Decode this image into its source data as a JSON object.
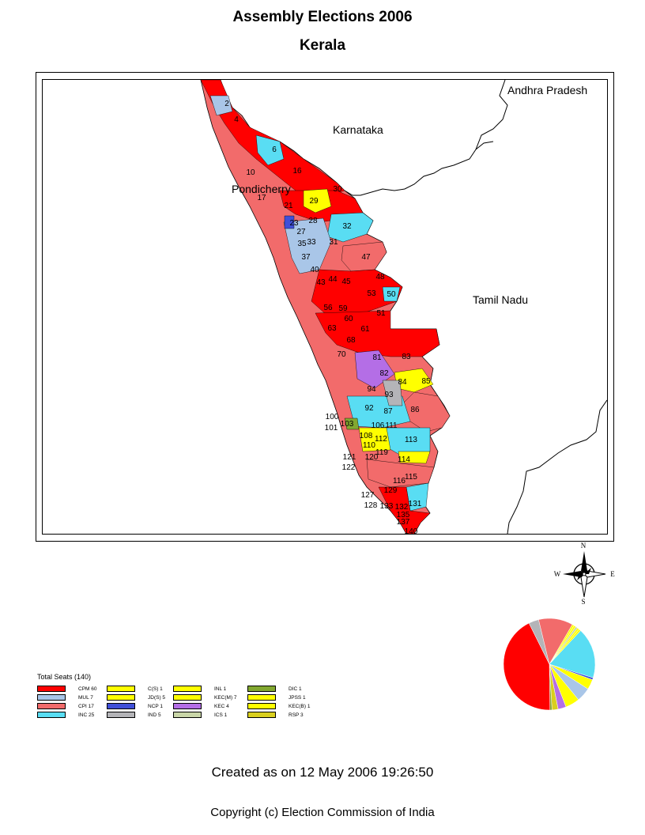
{
  "header": {
    "title": "Assembly Elections 2006",
    "state": "Kerala"
  },
  "map": {
    "neighbors": [
      "Andhra Pradesh",
      "Karnataka",
      "Pondicherry",
      "Tamil Nadu"
    ],
    "seat_labels": [
      "2",
      "4",
      "6",
      "10",
      "16",
      "17",
      "21",
      "23",
      "27",
      "28",
      "29",
      "30",
      "31",
      "32",
      "33",
      "35",
      "37",
      "40",
      "43",
      "44",
      "45",
      "47",
      "48",
      "50",
      "51",
      "53",
      "56",
      "59",
      "60",
      "61",
      "63",
      "68",
      "70",
      "81",
      "82",
      "83",
      "84",
      "85",
      "86",
      "87",
      "92",
      "93",
      "94",
      "100",
      "101",
      "103",
      "106",
      "108",
      "110",
      "111",
      "112",
      "113",
      "114",
      "115",
      "116",
      "119",
      "120",
      "121",
      "122",
      "127",
      "128",
      "129",
      "131",
      "132",
      "133",
      "135",
      "137",
      "140"
    ]
  },
  "compass": {
    "n": "N",
    "s": "S",
    "e": "E",
    "w": "W"
  },
  "legend": {
    "title": "Total Seats (140)",
    "items": [
      {
        "label": "CPM 60",
        "color": "#ff0000"
      },
      {
        "label": "MUL 7",
        "color": "#a9c6e8"
      },
      {
        "label": "CPI 17",
        "color": "#f26b6b"
      },
      {
        "label": "INC 25",
        "color": "#59ddf3"
      },
      {
        "label": "C(S) 1",
        "color": "#ffff00"
      },
      {
        "label": "JD(S) 5",
        "color": "#ffff00"
      },
      {
        "label": "NCP 1",
        "color": "#3f4fd8"
      },
      {
        "label": "IND 5",
        "color": "#b4b4b8"
      },
      {
        "label": "INL 1",
        "color": "#ffff00"
      },
      {
        "label": "KEC(M) 7",
        "color": "#ffff00"
      },
      {
        "label": "KEC 4",
        "color": "#b46ee6"
      },
      {
        "label": "ICS 1",
        "color": "#c9d6a8"
      },
      {
        "label": "DIC 1",
        "color": "#82a830"
      },
      {
        "label": "JPSS 1",
        "color": "#ffff00"
      },
      {
        "label": "KEC(B) 1",
        "color": "#ffff00"
      },
      {
        "label": "RSP 3",
        "color": "#d9cf1e"
      }
    ]
  },
  "chart_data": {
    "type": "pie",
    "categories": [
      "CPM",
      "MUL",
      "CPI",
      "INC",
      "C(S)",
      "JD(S)",
      "NCP",
      "IND",
      "INL",
      "KEC(M)",
      "KEC",
      "ICS",
      "DIC",
      "JPSS",
      "KEC(B)",
      "RSP"
    ],
    "values": [
      60,
      7,
      17,
      25,
      1,
      5,
      1,
      5,
      1,
      7,
      4,
      1,
      1,
      1,
      1,
      3
    ],
    "colors": [
      "#ff0000",
      "#a9c6e8",
      "#f26b6b",
      "#59ddf3",
      "#ffff00",
      "#ffff00",
      "#3f4fd8",
      "#b4b4b8",
      "#ffff00",
      "#ffff00",
      "#b46ee6",
      "#c9d6a8",
      "#82a830",
      "#ffff00",
      "#ffff00",
      "#d9cf1e"
    ],
    "order": [
      "INC",
      "NCP",
      "JD(S)",
      "MUL",
      "KEC(M)",
      "KEC",
      "RSP",
      "DIC",
      "CPM",
      "IND",
      "CPI"
    ]
  },
  "footer": {
    "created": "Created as on 12 May 2006 19:26:50",
    "copyright": "Copyright (c) Election Commission of India"
  }
}
